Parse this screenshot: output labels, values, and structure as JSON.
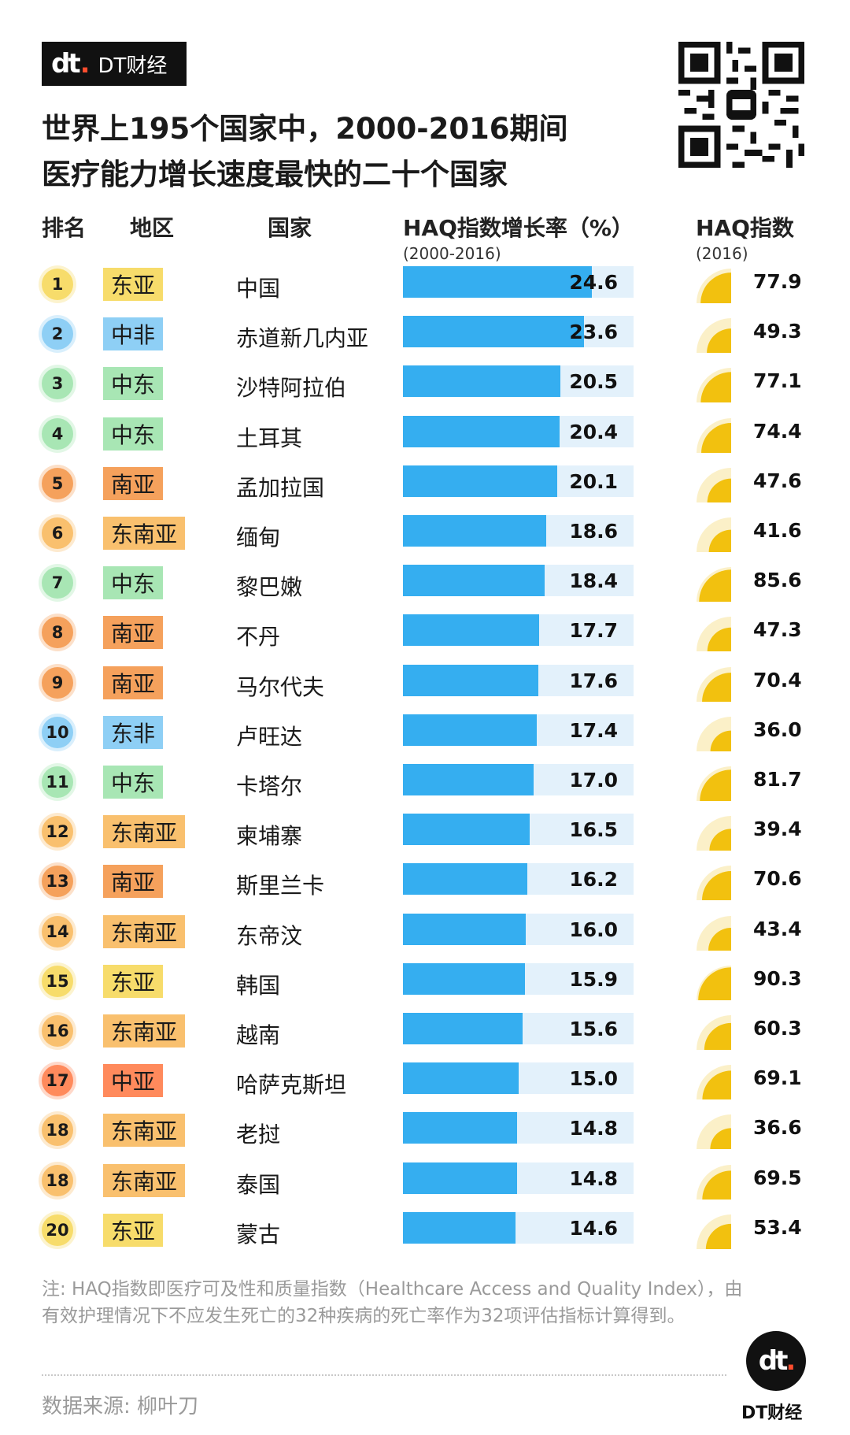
{
  "brand": {
    "mark": "dt",
    "name": "DT财经"
  },
  "title_lines": [
    "世界上195个国家中，2000-2016期间",
    "医疗能力增长速度最快的二十个国家"
  ],
  "headers": {
    "rank": "排名",
    "region": "地区",
    "country": "国家",
    "growth": "HAQ指数增长率（%）",
    "growth_sub": "(2000-2016)",
    "haq": "HAQ指数",
    "haq_sub": "(2016)"
  },
  "region_colors": {
    "东亚": "#f7dc6b",
    "中非": "#8ecff5",
    "东非": "#8ecff5",
    "中东": "#a8e6b4",
    "南亚": "#f5a15c",
    "东南亚": "#f9c06e",
    "中亚": "#ff8a5c"
  },
  "colors": {
    "bar_fill": "#35aef0",
    "bar_track": "#e3f1fb",
    "gauge_fill": "#f2c10f",
    "gauge_track": "#fbf0c8"
  },
  "chart_data": {
    "type": "table",
    "columns": [
      "排名",
      "地区",
      "国家",
      "HAQ指数增长率（%）",
      "HAQ指数"
    ],
    "growth_range": [
      0,
      30
    ],
    "haq_range": [
      0,
      100
    ],
    "rows": [
      {
        "rank": "1",
        "region": "东亚",
        "country": "中国",
        "growth": 24.6,
        "haq": 77.9
      },
      {
        "rank": "2",
        "region": "中非",
        "country": "赤道新几内亚",
        "growth": 23.6,
        "haq": 49.3
      },
      {
        "rank": "3",
        "region": "中东",
        "country": "沙特阿拉伯",
        "growth": 20.5,
        "haq": 77.1
      },
      {
        "rank": "4",
        "region": "中东",
        "country": "土耳其",
        "growth": 20.4,
        "haq": 74.4
      },
      {
        "rank": "5",
        "region": "南亚",
        "country": "孟加拉国",
        "growth": 20.1,
        "haq": 47.6
      },
      {
        "rank": "6",
        "region": "东南亚",
        "country": "缅甸",
        "growth": 18.6,
        "haq": 41.6
      },
      {
        "rank": "7",
        "region": "中东",
        "country": "黎巴嫩",
        "growth": 18.4,
        "haq": 85.6
      },
      {
        "rank": "8",
        "region": "南亚",
        "country": "不丹",
        "growth": 17.7,
        "haq": 47.3
      },
      {
        "rank": "9",
        "region": "南亚",
        "country": "马尔代夫",
        "growth": 17.6,
        "haq": 70.4
      },
      {
        "rank": "10",
        "region": "东非",
        "country": "卢旺达",
        "growth": 17.4,
        "haq": 36.0
      },
      {
        "rank": "11",
        "region": "中东",
        "country": "卡塔尔",
        "growth": 17.0,
        "haq": 81.7
      },
      {
        "rank": "12",
        "region": "东南亚",
        "country": "柬埔寨",
        "growth": 16.5,
        "haq": 39.4
      },
      {
        "rank": "13",
        "region": "南亚",
        "country": "斯里兰卡",
        "growth": 16.2,
        "haq": 70.6
      },
      {
        "rank": "14",
        "region": "东南亚",
        "country": "东帝汶",
        "growth": 16.0,
        "haq": 43.4
      },
      {
        "rank": "15",
        "region": "东亚",
        "country": "韩国",
        "growth": 15.9,
        "haq": 90.3
      },
      {
        "rank": "16",
        "region": "东南亚",
        "country": "越南",
        "growth": 15.6,
        "haq": 60.3
      },
      {
        "rank": "17",
        "region": "中亚",
        "country": "哈萨克斯坦",
        "growth": 15.0,
        "haq": 69.1
      },
      {
        "rank": "18",
        "region": "东南亚",
        "country": "老挝",
        "growth": 14.8,
        "haq": 36.6
      },
      {
        "rank": "18",
        "region": "东南亚",
        "country": "泰国",
        "growth": 14.8,
        "haq": 69.5
      },
      {
        "rank": "20",
        "region": "东亚",
        "country": "蒙古",
        "growth": 14.6,
        "haq": 53.4
      }
    ]
  },
  "note": "注: HAQ指数即医疗可及性和质量指数（Healthcare Access and Quality Index），由有效护理情况下不应发生死亡的32种疾病的死亡率作为32项评估指标计算得到。",
  "source": "数据来源: 柳叶刀",
  "footer": {
    "mark": "dt",
    "name": "DT财经"
  }
}
